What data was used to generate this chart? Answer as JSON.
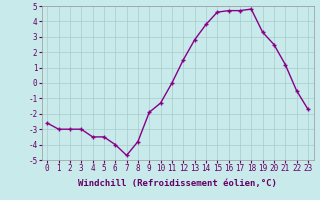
{
  "x": [
    0,
    1,
    2,
    3,
    4,
    5,
    6,
    7,
    8,
    9,
    10,
    11,
    12,
    13,
    14,
    15,
    16,
    17,
    18,
    19,
    20,
    21,
    22,
    23
  ],
  "y": [
    -2.6,
    -3.0,
    -3.0,
    -3.0,
    -3.5,
    -3.5,
    -4.0,
    -4.7,
    -3.8,
    -1.9,
    -1.3,
    0.0,
    1.5,
    2.8,
    3.8,
    4.6,
    4.7,
    4.7,
    4.8,
    3.3,
    2.5,
    1.2,
    -0.5,
    -1.7
  ],
  "line_color": "#880088",
  "marker": "+",
  "marker_size": 3,
  "marker_linewidth": 1.0,
  "bg_color": "#c8eaea",
  "grid_color": "#a8cccc",
  "ylim": [
    -5,
    5
  ],
  "xlim": [
    0,
    23
  ],
  "xlabel": "Windchill (Refroidissement éolien,°C)",
  "xlabel_fontsize": 6.5,
  "tick_fontsize": 5.5,
  "xticks": [
    0,
    1,
    2,
    3,
    4,
    5,
    6,
    7,
    8,
    9,
    10,
    11,
    12,
    13,
    14,
    15,
    16,
    17,
    18,
    19,
    20,
    21,
    22,
    23
  ],
  "yticks": [
    -5,
    -4,
    -3,
    -2,
    -1,
    0,
    1,
    2,
    3,
    4,
    5
  ],
  "line_width": 1.0
}
